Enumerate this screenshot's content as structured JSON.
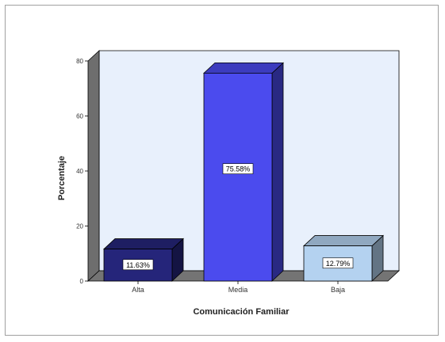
{
  "chart_data": {
    "type": "bar",
    "style": "3d",
    "title": "",
    "xlabel": "Comunicación Familiar",
    "ylabel": "Porcentaje",
    "ylim": [
      0,
      80
    ],
    "yticks": [
      "0",
      "20",
      "40",
      "60",
      "80"
    ],
    "grid": false,
    "legend": "none",
    "categories": [
      "Alta",
      "Media",
      "Baja"
    ],
    "values": [
      11.63,
      75.58,
      12.79
    ],
    "data_labels": [
      "11.63%",
      "75.58%",
      "12.79%"
    ],
    "colors": {
      "Alta": "#25257a",
      "Media": "#4b4bee",
      "Baja": "#b4d2f0",
      "wall": "#e8f0fc",
      "side_wall": "#6e6e6e",
      "floor": "#747474"
    }
  }
}
